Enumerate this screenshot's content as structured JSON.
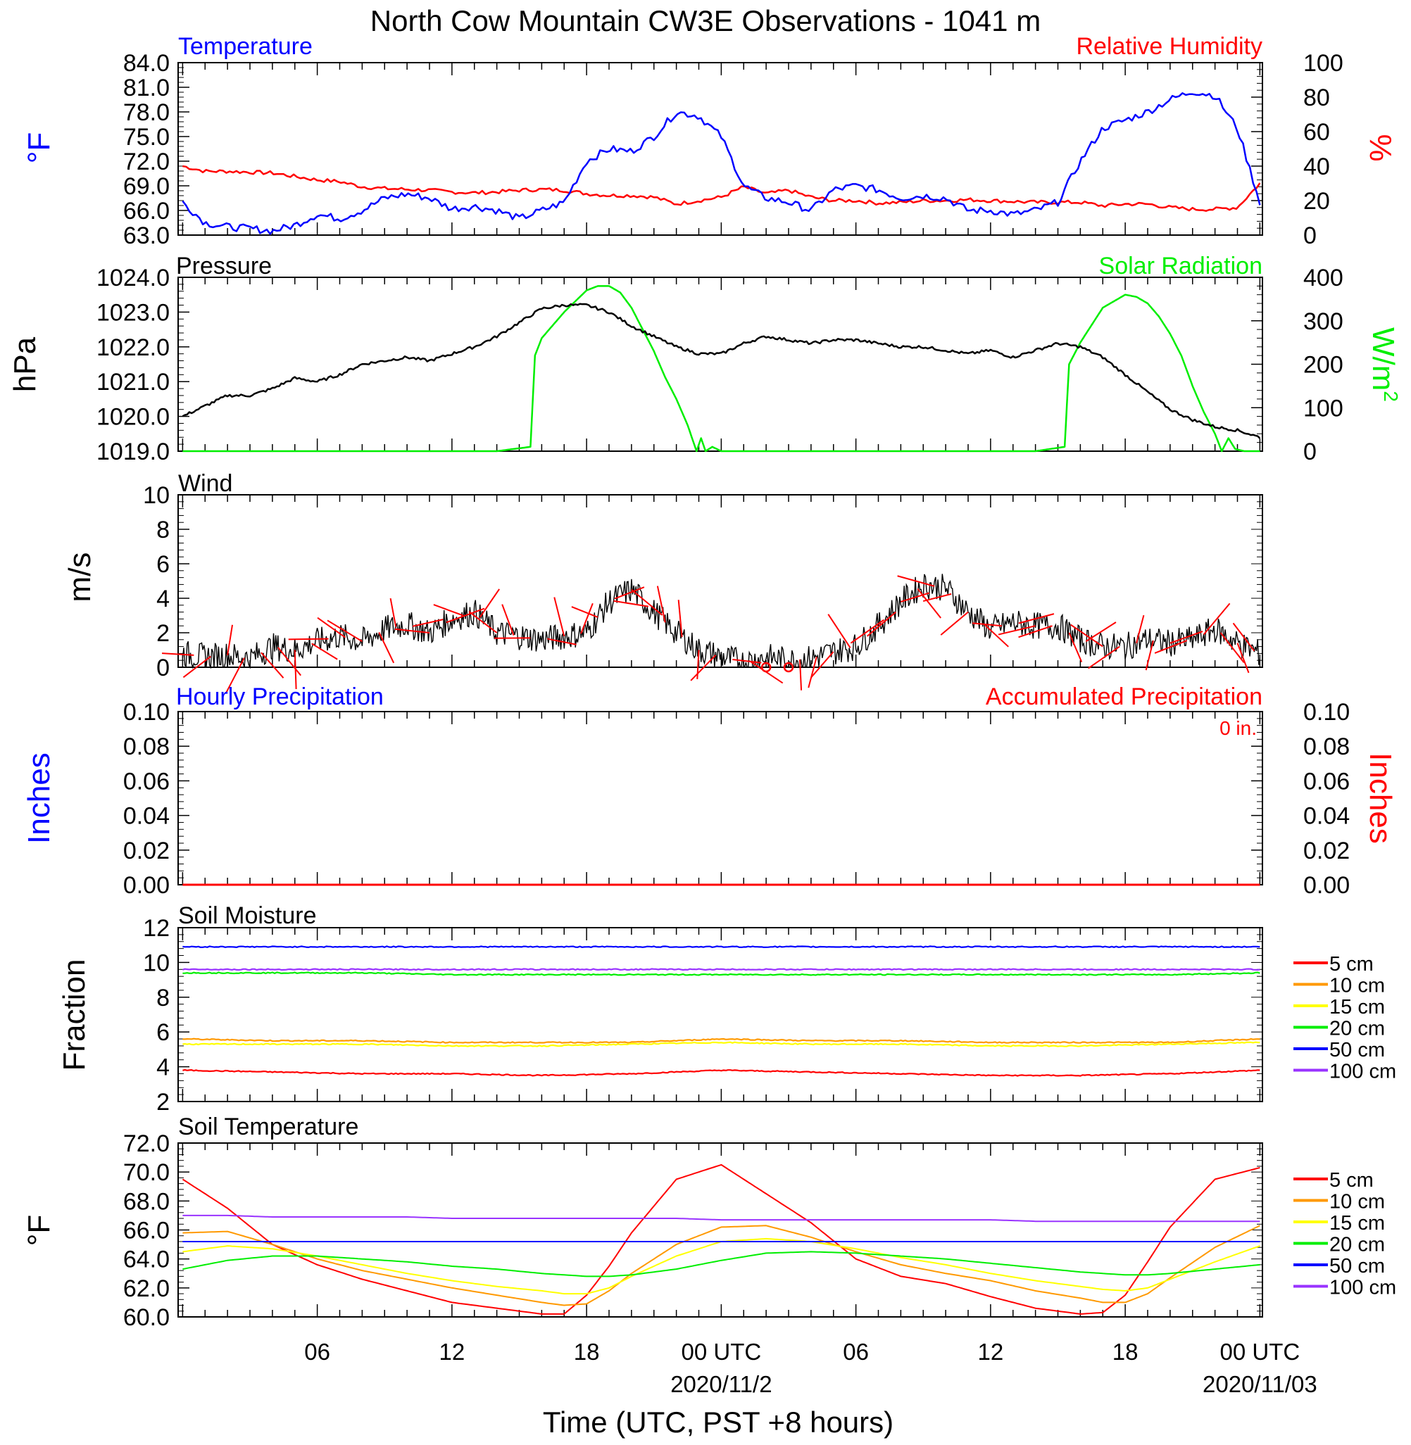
{
  "title": "North Cow Mountain CW3E Observations - 1041 m",
  "colors": {
    "blue": "#0000ff",
    "red": "#ff0000",
    "green": "#00ee00",
    "black": "#000000",
    "orange": "#ff9900",
    "yellow": "#ffff00",
    "purple": "#9933ff"
  },
  "time_axis": {
    "xlabel": "Time (UTC, PST +8 hours)",
    "tick_labels": [
      "06",
      "12",
      "18",
      "00 UTC",
      "06",
      "12",
      "18",
      "00 UTC"
    ],
    "date_labels": [
      "2020/11/2",
      "2020/11/03"
    ]
  },
  "chart_data": [
    {
      "type": "line",
      "panel": "temperature-rh",
      "left_title": "Temperature",
      "right_title": "Relative Humidity",
      "ylabel_left": "°F",
      "ylabel_right": "%",
      "ylim_left": [
        63,
        84
      ],
      "ylim_right": [
        0,
        100
      ],
      "yticks_left": [
        "84.0",
        "81.0",
        "78.0",
        "75.0",
        "72.0",
        "69.0",
        "66.0",
        "63.0"
      ],
      "yticks_right": [
        "100",
        "80",
        "60",
        "40",
        "20",
        "0"
      ],
      "x_hours": [
        0,
        1,
        2,
        3,
        4,
        5,
        6,
        7,
        8,
        9,
        10,
        11,
        12,
        13,
        14,
        15,
        16,
        17,
        18,
        19,
        20,
        21,
        22,
        23,
        24,
        25,
        26,
        27,
        28,
        29,
        30,
        31,
        32,
        33,
        34,
        35,
        36,
        37,
        38,
        39,
        40,
        41,
        42,
        43,
        44,
        45,
        46,
        47,
        48
      ],
      "series": [
        {
          "name": "Temperature",
          "axis": "left",
          "color": "blue",
          "values": [
            67.0,
            64.5,
            64.0,
            63.8,
            63.5,
            64.2,
            65.5,
            65.0,
            66.0,
            67.5,
            68.0,
            67.5,
            66.2,
            66.5,
            66.0,
            65.0,
            66.0,
            67.0,
            72.0,
            73.5,
            73.2,
            75.0,
            78.0,
            77.5,
            75.0,
            69.0,
            67.5,
            67.0,
            66.0,
            68.5,
            69.0,
            68.5,
            67.5,
            67.8,
            67.5,
            66.0,
            66.0,
            65.5,
            66.0,
            67.0,
            72.0,
            76.0,
            77.0,
            78.0,
            79.5,
            80.5,
            80.0,
            76.0,
            67.0
          ]
        },
        {
          "name": "Relative Humidity",
          "axis": "right",
          "color": "red",
          "values": [
            40.0,
            37.0,
            37.0,
            36.5,
            36.0,
            34.0,
            32.0,
            31.0,
            28.0,
            27.0,
            26.5,
            26.0,
            25.0,
            24.5,
            25.0,
            26.0,
            26.5,
            26.0,
            24.0,
            23.0,
            23.0,
            22.0,
            18.0,
            20.0,
            22.0,
            28.0,
            24.0,
            26.0,
            22.0,
            20.0,
            20.0,
            18.5,
            19.0,
            20.0,
            20.0,
            20.5,
            20.0,
            19.5,
            19.0,
            19.0,
            19.0,
            17.0,
            18.0,
            18.0,
            16.0,
            15.0,
            15.0,
            16.0,
            30.0
          ]
        }
      ]
    },
    {
      "type": "line",
      "panel": "pressure-solar",
      "left_title": "Pressure",
      "right_title": "Solar Radiation",
      "ylabel_left": "hPa",
      "ylabel_right": "W/m",
      "ylabel_right_sup": "2",
      "ylim_left": [
        1019,
        1024
      ],
      "ylim_right": [
        0,
        400
      ],
      "yticks_left": [
        "1024.0",
        "1023.0",
        "1022.0",
        "1021.0",
        "1020.0",
        "1019.0"
      ],
      "yticks_right": [
        "400",
        "300",
        "200",
        "100",
        "0"
      ],
      "series": [
        {
          "name": "Pressure",
          "axis": "left",
          "color": "black",
          "x_hours": [
            0,
            1,
            2,
            3,
            4,
            5,
            6,
            7,
            8,
            9,
            10,
            11,
            12,
            13,
            14,
            15,
            16,
            17,
            18,
            19,
            20,
            21,
            22,
            23,
            24,
            25,
            26,
            27,
            28,
            29,
            30,
            31,
            32,
            33,
            34,
            35,
            36,
            37,
            38,
            39,
            40,
            41,
            42,
            43,
            44,
            45,
            46,
            47,
            48
          ],
          "values": [
            1020.0,
            1020.3,
            1020.6,
            1020.6,
            1020.8,
            1021.1,
            1021.0,
            1021.2,
            1021.5,
            1021.6,
            1021.7,
            1021.6,
            1021.8,
            1022.0,
            1022.3,
            1022.7,
            1023.1,
            1023.2,
            1023.2,
            1023.0,
            1022.6,
            1022.3,
            1022.0,
            1021.8,
            1021.8,
            1022.1,
            1022.3,
            1022.2,
            1022.1,
            1022.2,
            1022.2,
            1022.1,
            1022.0,
            1022.0,
            1021.9,
            1021.8,
            1021.9,
            1021.7,
            1021.9,
            1022.1,
            1022.0,
            1021.7,
            1021.2,
            1020.7,
            1020.2,
            1019.9,
            1019.7,
            1019.6,
            1019.4
          ]
        },
        {
          "name": "Solar Radiation",
          "axis": "right",
          "color": "green",
          "x_hours": [
            0,
            14,
            15.5,
            15.7,
            16.0,
            17.0,
            17.5,
            18.0,
            18.5,
            19.0,
            19.5,
            20.0,
            20.5,
            21.0,
            21.5,
            22.0,
            22.5,
            22.9,
            23.1,
            23.3,
            23.6,
            24.0,
            38.0,
            39.3,
            39.5,
            40.0,
            40.5,
            41.0,
            41.5,
            42.0,
            42.5,
            43.0,
            43.5,
            44.0,
            44.5,
            45.0,
            45.5,
            46.0,
            46.3,
            46.6,
            46.9,
            47.3,
            48.0
          ],
          "values": [
            0,
            0,
            10,
            220,
            260,
            320,
            345,
            370,
            380,
            380,
            365,
            330,
            280,
            230,
            170,
            120,
            60,
            0,
            30,
            0,
            10,
            0,
            0,
            10,
            200,
            250,
            290,
            330,
            345,
            360,
            355,
            340,
            310,
            270,
            220,
            150,
            90,
            40,
            0,
            30,
            5,
            0,
            0
          ]
        }
      ]
    },
    {
      "type": "line",
      "panel": "wind",
      "left_title": "Wind",
      "ylabel_left": "m/s",
      "ylim_left": [
        0,
        10
      ],
      "yticks_left": [
        "10",
        "8",
        "6",
        "4",
        "2",
        "0"
      ],
      "x_hours": [
        0,
        1,
        2,
        3,
        4,
        5,
        6,
        7,
        8,
        9,
        10,
        11,
        12,
        13,
        14,
        15,
        16,
        17,
        18,
        19,
        20,
        21,
        22,
        23,
        24,
        25,
        26,
        27,
        28,
        29,
        30,
        31,
        32,
        33,
        34,
        35,
        36,
        37,
        38,
        39,
        40,
        41,
        42,
        43,
        44,
        45,
        46,
        47,
        48
      ],
      "series": [
        {
          "name": "Wind speed",
          "color": "black",
          "values": [
            0.8,
            0.6,
            0.7,
            0.5,
            1.2,
            1.0,
            1.5,
            1.8,
            1.5,
            2.2,
            2.5,
            2.0,
            2.8,
            3.2,
            2.0,
            1.8,
            1.6,
            1.8,
            2.0,
            3.8,
            4.5,
            3.2,
            2.0,
            1.0,
            0.6,
            0.3,
            0.6,
            0.4,
            0.5,
            0.9,
            1.2,
            2.4,
            3.8,
            4.8,
            4.6,
            3.2,
            2.2,
            2.6,
            2.4,
            2.4,
            1.6,
            1.2,
            1.2,
            1.6,
            1.4,
            1.6,
            2.2,
            1.4,
            0.8
          ]
        }
      ],
      "calm_circle_hours": [
        26.0,
        27.0
      ]
    },
    {
      "type": "line",
      "panel": "precipitation",
      "left_title": "Hourly Precipitation",
      "right_title": "Accumulated Precipitation",
      "annotation": "0 in.",
      "ylabel_left": "Inches",
      "ylabel_right": "Inches",
      "ylim_left": [
        0,
        0.1
      ],
      "ylim_right": [
        0,
        0.1
      ],
      "yticks_left": [
        "0.10",
        "0.08",
        "0.06",
        "0.04",
        "0.02",
        "0.00"
      ],
      "yticks_right": [
        "0.10",
        "0.08",
        "0.06",
        "0.04",
        "0.02",
        "0.00"
      ],
      "x_hours": [
        0,
        48
      ],
      "series": [
        {
          "name": "Accumulated Precipitation",
          "color": "red",
          "values": [
            0,
            0
          ]
        }
      ]
    },
    {
      "type": "line",
      "panel": "soil-moisture",
      "left_title": "Soil Moisture",
      "ylabel_left": "Fraction",
      "ylim_left": [
        2,
        12
      ],
      "yticks_left": [
        "12",
        "10",
        "8",
        "6",
        "4",
        "2"
      ],
      "x_hours": [
        0,
        4,
        8,
        12,
        16,
        20,
        24,
        28,
        32,
        36,
        40,
        44,
        48
      ],
      "series": [
        {
          "name": "5 cm",
          "color": "red",
          "values": [
            3.8,
            3.7,
            3.6,
            3.6,
            3.5,
            3.6,
            3.8,
            3.7,
            3.6,
            3.5,
            3.5,
            3.6,
            3.8
          ]
        },
        {
          "name": "10 cm",
          "color": "orange",
          "values": [
            5.6,
            5.5,
            5.5,
            5.4,
            5.4,
            5.4,
            5.6,
            5.5,
            5.5,
            5.4,
            5.4,
            5.4,
            5.6
          ]
        },
        {
          "name": "15 cm",
          "color": "yellow",
          "values": [
            5.3,
            5.3,
            5.3,
            5.2,
            5.2,
            5.3,
            5.4,
            5.3,
            5.3,
            5.2,
            5.2,
            5.3,
            5.4
          ]
        },
        {
          "name": "20 cm",
          "color": "green",
          "values": [
            9.4,
            9.4,
            9.4,
            9.3,
            9.3,
            9.3,
            9.3,
            9.3,
            9.3,
            9.3,
            9.3,
            9.3,
            9.4
          ]
        },
        {
          "name": "50 cm",
          "color": "blue",
          "values": [
            10.9,
            10.9,
            10.9,
            10.9,
            10.9,
            10.9,
            10.9,
            10.9,
            10.9,
            10.9,
            10.9,
            10.9,
            10.9
          ]
        },
        {
          "name": "100 cm",
          "color": "purple",
          "values": [
            9.6,
            9.6,
            9.6,
            9.6,
            9.6,
            9.6,
            9.6,
            9.6,
            9.6,
            9.6,
            9.6,
            9.6,
            9.6
          ]
        }
      ]
    },
    {
      "type": "line",
      "panel": "soil-temperature",
      "left_title": "Soil Temperature",
      "ylabel_left": "°F",
      "ylim_left": [
        60,
        72
      ],
      "yticks_left": [
        "72.0",
        "70.0",
        "68.0",
        "66.0",
        "64.0",
        "62.0",
        "60.0"
      ],
      "x_hours": [
        0,
        2,
        4,
        6,
        8,
        10,
        12,
        14,
        16,
        17,
        18,
        19,
        20,
        22,
        24,
        26,
        28,
        30,
        32,
        34,
        36,
        38,
        40,
        41,
        42,
        43,
        44,
        46,
        48
      ],
      "series": [
        {
          "name": "5 cm",
          "color": "red",
          "values": [
            69.5,
            67.5,
            65.0,
            63.6,
            62.6,
            61.8,
            61.0,
            60.6,
            60.2,
            60.2,
            61.5,
            63.5,
            65.8,
            69.5,
            70.5,
            68.5,
            66.5,
            64.0,
            62.8,
            62.3,
            61.4,
            60.6,
            60.2,
            60.3,
            61.5,
            63.8,
            66.2,
            69.5,
            70.3
          ]
        },
        {
          "name": "10 cm",
          "color": "orange",
          "values": [
            65.8,
            65.9,
            65.0,
            64.0,
            63.2,
            62.6,
            62.0,
            61.5,
            61.0,
            60.8,
            60.9,
            61.8,
            63.0,
            65.0,
            66.2,
            66.3,
            65.5,
            64.5,
            63.6,
            63.0,
            62.5,
            61.8,
            61.3,
            61.0,
            61.0,
            61.6,
            62.7,
            64.8,
            66.3
          ]
        },
        {
          "name": "15 cm",
          "color": "yellow",
          "values": [
            64.5,
            64.9,
            64.7,
            64.2,
            63.6,
            63.0,
            62.5,
            62.1,
            61.8,
            61.6,
            61.6,
            62.0,
            62.8,
            64.2,
            65.2,
            65.4,
            65.2,
            64.7,
            64.1,
            63.6,
            63.0,
            62.5,
            62.1,
            61.9,
            61.8,
            62.0,
            62.6,
            63.8,
            64.9
          ]
        },
        {
          "name": "20 cm",
          "color": "green",
          "values": [
            63.3,
            63.9,
            64.2,
            64.2,
            64.0,
            63.8,
            63.5,
            63.3,
            63.0,
            62.9,
            62.8,
            62.8,
            62.9,
            63.3,
            63.9,
            64.4,
            64.5,
            64.4,
            64.2,
            64.0,
            63.7,
            63.4,
            63.1,
            63.0,
            62.9,
            62.9,
            63.0,
            63.3,
            63.6
          ]
        },
        {
          "name": "50 cm",
          "color": "blue",
          "values": [
            65.2,
            65.2,
            65.2,
            65.2,
            65.2,
            65.2,
            65.2,
            65.2,
            65.2,
            65.2,
            65.2,
            65.2,
            65.2,
            65.2,
            65.2,
            65.2,
            65.2,
            65.2,
            65.2,
            65.2,
            65.2,
            65.2,
            65.2,
            65.2,
            65.2,
            65.2,
            65.2,
            65.2,
            65.2
          ]
        },
        {
          "name": "100 cm",
          "color": "purple",
          "values": [
            67.0,
            67.0,
            66.9,
            66.9,
            66.9,
            66.9,
            66.8,
            66.8,
            66.8,
            66.8,
            66.8,
            66.8,
            66.8,
            66.8,
            66.7,
            66.7,
            66.7,
            66.7,
            66.7,
            66.7,
            66.7,
            66.6,
            66.6,
            66.6,
            66.6,
            66.6,
            66.6,
            66.6,
            66.6
          ]
        }
      ]
    }
  ],
  "soil_legend_labels": [
    "5 cm",
    "10 cm",
    "15 cm",
    "20 cm",
    "50 cm",
    "100 cm"
  ]
}
